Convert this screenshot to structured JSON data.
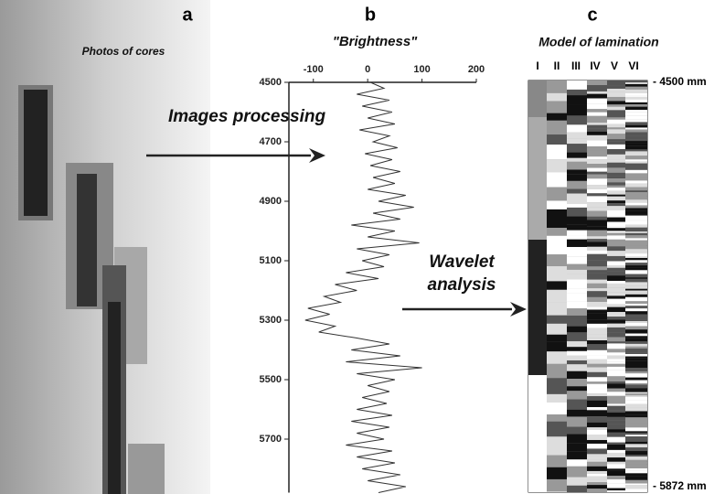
{
  "chart_data": {
    "type": "line",
    "title": "\"Brightness\"",
    "panel_labels": [
      "a",
      "b",
      "c"
    ],
    "annotations": [
      "Photos of cores",
      "Images processing",
      "Wavelet",
      "analysis",
      "Model of lamination",
      "- 4500 mm",
      "- 5872 mm"
    ],
    "lamination_columns": [
      "I",
      "II",
      "III",
      "IV",
      "V",
      "VI"
    ],
    "x": [
      4500,
      4520,
      4540,
      4560,
      4580,
      4600,
      4620,
      4640,
      4660,
      4680,
      4700,
      4720,
      4740,
      4760,
      4780,
      4800,
      4820,
      4840,
      4860,
      4880,
      4900,
      4920,
      4940,
      4960,
      4980,
      5000,
      5020,
      5040,
      5060,
      5080,
      5100,
      5120,
      5140,
      5160,
      5180,
      5200,
      5220,
      5240,
      5260,
      5280,
      5300,
      5320,
      5340,
      5360,
      5380,
      5400,
      5420,
      5440,
      5460,
      5480,
      5500,
      5520,
      5540,
      5560,
      5580,
      5600,
      5620,
      5640,
      5660,
      5680,
      5700,
      5720,
      5740,
      5760,
      5780,
      5800,
      5820,
      5840,
      5860,
      5880
    ],
    "values": [
      5,
      30,
      -20,
      40,
      -10,
      45,
      0,
      50,
      -15,
      40,
      10,
      55,
      -5,
      45,
      5,
      60,
      10,
      50,
      0,
      70,
      20,
      85,
      10,
      60,
      -30,
      50,
      0,
      95,
      -20,
      40,
      -10,
      30,
      -40,
      20,
      -60,
      -20,
      -80,
      -50,
      -110,
      -70,
      -115,
      -60,
      -90,
      -20,
      40,
      -30,
      60,
      -40,
      100,
      -20,
      50,
      0,
      40,
      -10,
      35,
      -20,
      45,
      -30,
      40,
      -20,
      30,
      -40,
      45,
      -20,
      50,
      -10,
      60,
      0,
      70,
      20
    ],
    "color": "#333333",
    "xlim": [
      4500,
      5880
    ],
    "xticks": [
      4500,
      4700,
      4900,
      5100,
      5300,
      5500,
      5700
    ],
    "ylim": [
      -145,
      200
    ],
    "yticks": [
      -100,
      0,
      100,
      200
    ]
  }
}
